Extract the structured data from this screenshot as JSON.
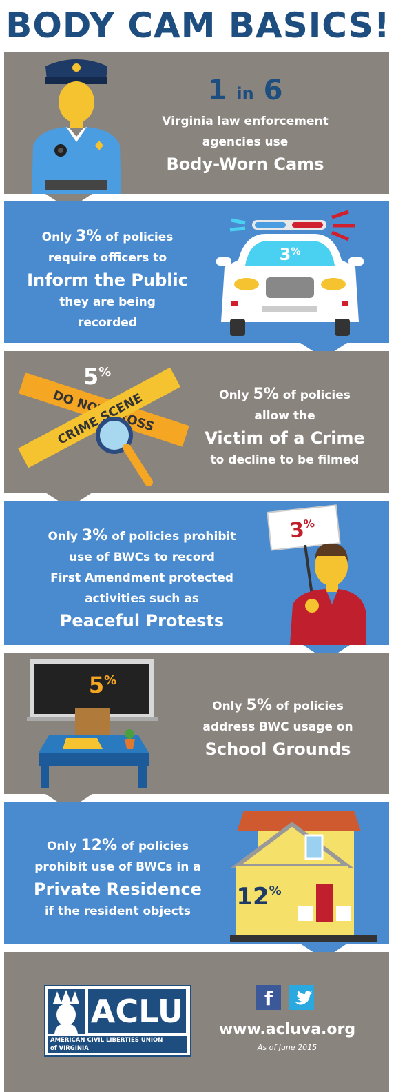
{
  "title": "BODY CAM BASICS!",
  "panel1": {
    "num_a": "1",
    "in": "in",
    "num_b": "6",
    "line1": "Virginia law enforcement",
    "line2": "agencies use",
    "highlight": "Body-Worn Cams"
  },
  "panel2": {
    "pre": "Only",
    "pct": "3%",
    "post": "of policies",
    "line2": "require officers to",
    "highlight": "Inform the Public",
    "line4": "they are being",
    "line5": "recorded",
    "badge_num": "3",
    "badge_pct": "%"
  },
  "panel3": {
    "pre": "Only",
    "pct": "5%",
    "post": "of policies",
    "line2": "allow the",
    "highlight": "Victim of a Crime",
    "line4": "to decline to be filmed",
    "badge_num": "5",
    "badge_pct": "%",
    "tape1": "DO NOT CROSS",
    "tape2": "CRIME SCENE"
  },
  "panel4": {
    "pre": "Only",
    "pct": "3%",
    "post": "of policies prohibit",
    "line2": "use of BWCs to record",
    "line3": "First Amendment protected",
    "line4": "activities such as",
    "highlight": "Peaceful Protests",
    "badge_num": "3",
    "badge_pct": "%"
  },
  "panel5": {
    "pre": "Only",
    "pct": "5%",
    "post": "of policies",
    "line2": "address BWC usage on",
    "highlight": "School Grounds",
    "badge_num": "5",
    "badge_pct": "%"
  },
  "panel6": {
    "pre": "Only",
    "pct": "12%",
    "post": "of policies",
    "line2": "prohibit use of BWCs in a",
    "highlight": "Private Residence",
    "line4": "if the resident objects",
    "badge_num": "12",
    "badge_pct": "%"
  },
  "footer": {
    "logo": "ACLU",
    "org1": "AMERICAN CIVIL LIBERTIES UNION",
    "org2": "of VIRGINIA",
    "url": "www.acluva.org",
    "date": "As of June 2015",
    "facebook": "f",
    "twitter_icon": "twitter-bird"
  },
  "colors": {
    "navy": "#1e4d7f",
    "gray": "#8a847e",
    "blue": "#4a8bd0",
    "yellow": "#f5c230",
    "red": "#d0202e"
  }
}
